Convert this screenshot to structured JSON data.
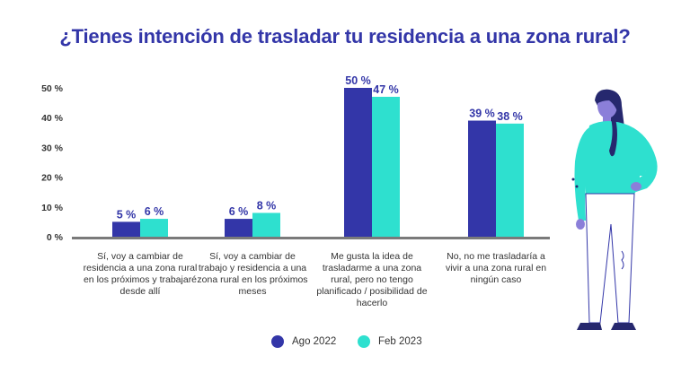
{
  "title": "¿Tienes intención de trasladar tu residencia a una zona rural?",
  "colors": {
    "series_a": "#3336a8",
    "series_b": "#2ee0cf",
    "axis": "#7a7a7a",
    "title": "#3336a8"
  },
  "legend": [
    {
      "label": "Ago 2022",
      "color": "#3336a8"
    },
    {
      "label": "Feb 2023",
      "color": "#2ee0cf"
    }
  ],
  "categories": [
    "Sí, voy a cambiar de residencia a una zona rural en los próximos y trabajaré desde allí",
    "Sí, voy a cambiar de trabajo y residencia a una zona rural en los próximos meses",
    "Me gusta la idea de trasladarme a una zona rural, pero no tengo planificado / posibilidad de hacerlo",
    "No, no me trasladaría a vivir a una zona rural en ningún caso"
  ],
  "illustration": "woman-standing-illustration",
  "chart_data": {
    "type": "bar",
    "title": "¿Tienes intención de trasladar tu residencia a una zona rural?",
    "categories": [
      "Sí, voy a cambiar de residencia a una zona rural en los próximos y trabajaré desde allí",
      "Sí, voy a cambiar de trabajo y residencia a una zona rural en los próximos meses",
      "Me gusta la idea de trasladarme a una zona rural, pero no tengo planificado / posibilidad de hacerlo",
      "No, no me trasladaría a vivir a una zona rural en ningún caso"
    ],
    "series": [
      {
        "name": "Ago 2022",
        "values": [
          5,
          6,
          50,
          39
        ],
        "labels": [
          "5 %",
          "6 %",
          "50 %",
          "39 %"
        ]
      },
      {
        "name": "Feb 2023",
        "values": [
          6,
          8,
          47,
          38
        ],
        "labels": [
          "6 %",
          "8 %",
          "47 %",
          "38 %"
        ]
      }
    ],
    "ylim": [
      0,
      50
    ],
    "yticks": [
      0,
      10,
      20,
      30,
      40,
      50
    ],
    "ytick_labels": [
      "0 %",
      "10 %",
      "20 %",
      "30 %",
      "40 %",
      "50 %"
    ],
    "xlabel": "",
    "ylabel": "",
    "grid": false,
    "legend_position": "bottom-center"
  }
}
